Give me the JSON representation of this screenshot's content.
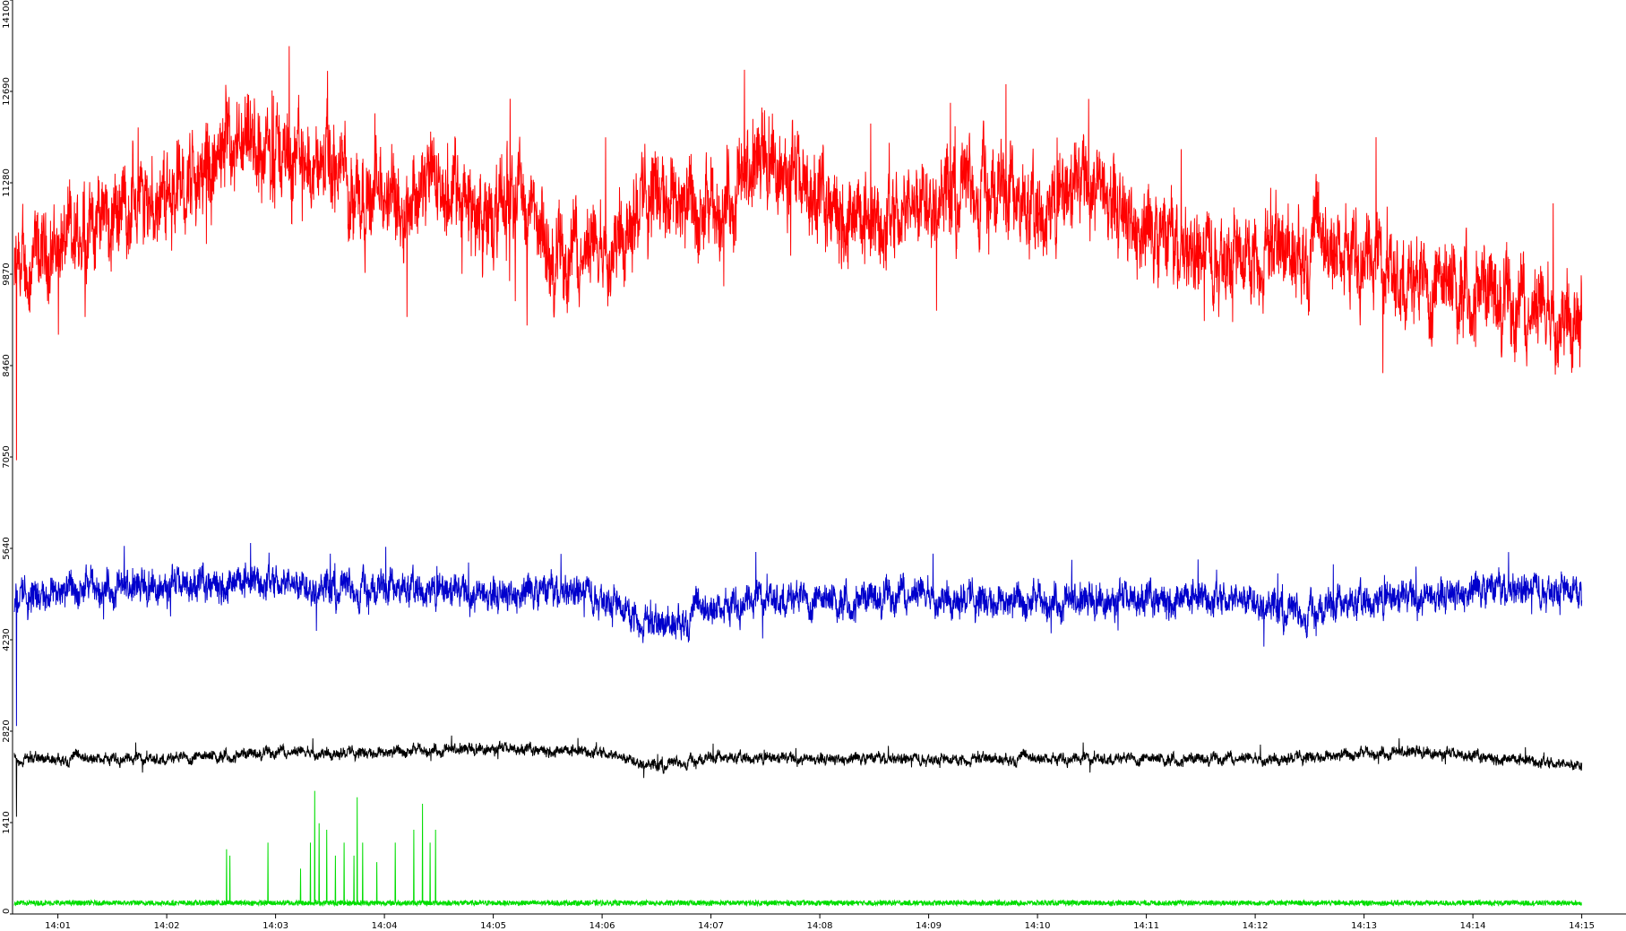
{
  "chart_data": {
    "type": "line",
    "x_tick_labels": [
      "14:01",
      "14:02",
      "14:03",
      "14:04",
      "14:05",
      "14:06",
      "14:07",
      "14:08",
      "14:09",
      "14:10",
      "14:11",
      "14:12",
      "14:13",
      "14:14",
      "14:15"
    ],
    "x_start_minute": 0.6,
    "x_end_minute": 15.0,
    "y_tick_labels": [
      "0",
      "1410",
      "2820",
      "4230",
      "5640",
      "7050",
      "8460",
      "9870",
      "11280",
      "12690",
      "14100"
    ],
    "ylim": [
      0,
      14100
    ],
    "colors": {
      "axis": "#000000",
      "red": "#ff0000",
      "blue": "#0000cc",
      "black": "#000000",
      "green": "#00dd00"
    },
    "series": [
      {
        "color": "red",
        "noise": 1000,
        "spike": [
          0.62,
          7000
        ],
        "anchors": [
          [
            0.6,
            9800
          ],
          [
            1.0,
            10300
          ],
          [
            1.5,
            10900
          ],
          [
            2.0,
            11100
          ],
          [
            2.5,
            11600
          ],
          [
            3.0,
            11800
          ],
          [
            3.5,
            11500
          ],
          [
            4.0,
            11000
          ],
          [
            4.5,
            11300
          ],
          [
            5.0,
            10600
          ],
          [
            5.2,
            11400
          ],
          [
            5.5,
            10100
          ],
          [
            6.0,
            10300
          ],
          [
            6.5,
            11300
          ],
          [
            7.0,
            10700
          ],
          [
            7.5,
            11700
          ],
          [
            8.0,
            11000
          ],
          [
            8.5,
            10600
          ],
          [
            9.0,
            11200
          ],
          [
            9.5,
            11300
          ],
          [
            10.0,
            10700
          ],
          [
            10.5,
            11400
          ],
          [
            11.0,
            10500
          ],
          [
            11.5,
            10200
          ],
          [
            12.0,
            10300
          ],
          [
            12.5,
            10300
          ],
          [
            13.0,
            10200
          ],
          [
            13.5,
            9700
          ],
          [
            14.0,
            9800
          ],
          [
            14.5,
            9300
          ],
          [
            15.0,
            9400
          ]
        ]
      },
      {
        "color": "blue",
        "noise": 380,
        "spike": [
          0.62,
          2900
        ],
        "anchors": [
          [
            0.6,
            4900
          ],
          [
            1.0,
            5000
          ],
          [
            2.0,
            5050
          ],
          [
            3.0,
            5150
          ],
          [
            4.0,
            5000
          ],
          [
            5.0,
            4950
          ],
          [
            5.8,
            5000
          ],
          [
            6.1,
            4850
          ],
          [
            6.5,
            4450
          ],
          [
            7.0,
            4700
          ],
          [
            7.5,
            4900
          ],
          [
            8.0,
            4850
          ],
          [
            9.0,
            4950
          ],
          [
            10.0,
            4800
          ],
          [
            11.0,
            4850
          ],
          [
            12.0,
            4900
          ],
          [
            12.4,
            4650
          ],
          [
            13.0,
            4800
          ],
          [
            14.0,
            5000
          ],
          [
            15.0,
            5050
          ]
        ]
      },
      {
        "color": "black",
        "noise": 130,
        "spike": [
          0.62,
          1500
        ],
        "anchors": [
          [
            0.6,
            2400
          ],
          [
            2.0,
            2400
          ],
          [
            3.0,
            2500
          ],
          [
            4.0,
            2500
          ],
          [
            5.0,
            2550
          ],
          [
            6.0,
            2500
          ],
          [
            6.5,
            2300
          ],
          [
            7.0,
            2400
          ],
          [
            8.0,
            2400
          ],
          [
            9.0,
            2400
          ],
          [
            10.0,
            2400
          ],
          [
            11.0,
            2400
          ],
          [
            12.0,
            2400
          ],
          [
            13.5,
            2500
          ],
          [
            15.0,
            2300
          ]
        ]
      },
      {
        "color": "green",
        "noise": 40,
        "spike": [
          0,
          0
        ],
        "base": 170,
        "bursts": [
          [
            2.55,
            1000
          ],
          [
            2.58,
            900
          ],
          [
            2.93,
            1100
          ],
          [
            3.23,
            700
          ],
          [
            3.32,
            1100
          ],
          [
            3.36,
            1900
          ],
          [
            3.4,
            1400
          ],
          [
            3.47,
            1300
          ],
          [
            3.55,
            900
          ],
          [
            3.63,
            1100
          ],
          [
            3.72,
            900
          ],
          [
            3.75,
            1800
          ],
          [
            3.8,
            1100
          ],
          [
            3.93,
            800
          ],
          [
            4.1,
            1100
          ],
          [
            4.27,
            1300
          ],
          [
            4.35,
            1700
          ],
          [
            4.42,
            1100
          ],
          [
            4.47,
            1300
          ]
        ]
      }
    ]
  }
}
